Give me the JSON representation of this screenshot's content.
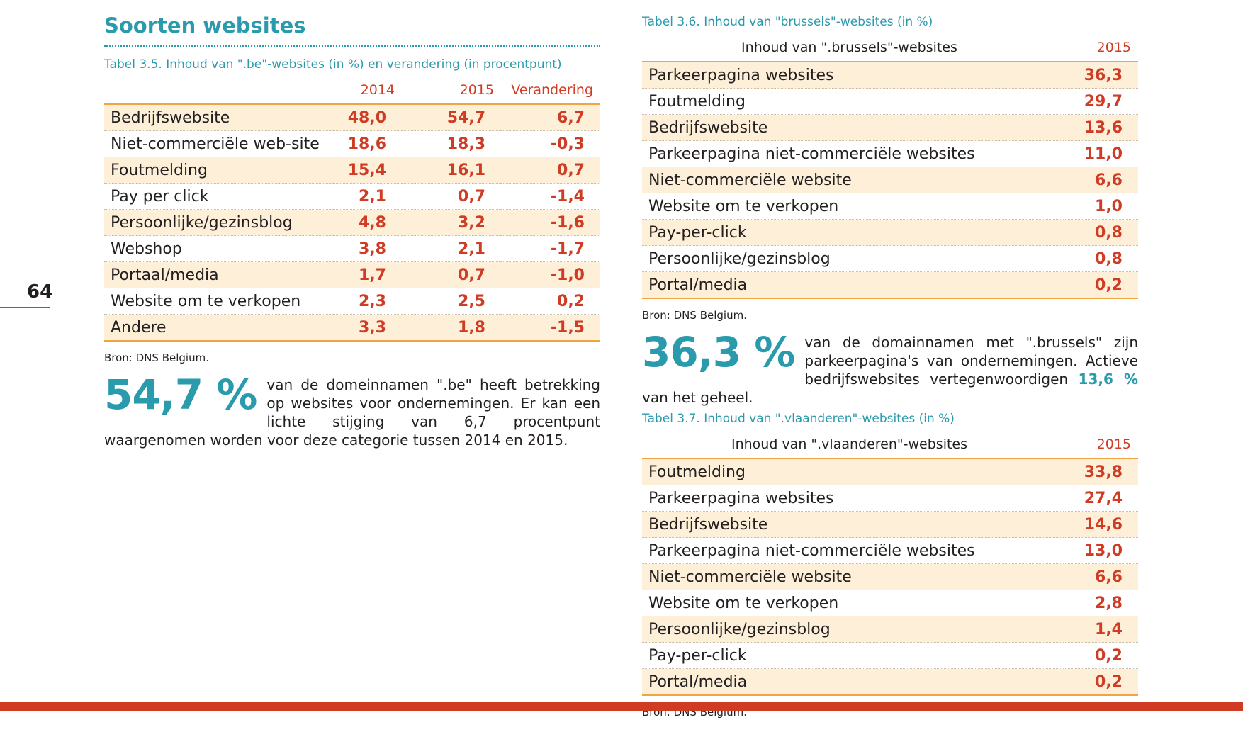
{
  "page_number": "64",
  "section_title": "Soorten websites",
  "table_35": {
    "caption": "Tabel 3.5. Inhoud van \".be\"-websites (in %) en verandering (in procentpunt)",
    "columns": [
      "",
      "2014",
      "2015",
      "Verandering"
    ],
    "rows": [
      {
        "label": "Bedrijfswebsite",
        "v2014": "48,0",
        "v2015": "54,7",
        "change": "6,7"
      },
      {
        "label": "Niet-commerciële web-site",
        "v2014": "18,6",
        "v2015": "18,3",
        "change": "-0,3"
      },
      {
        "label": "Foutmelding",
        "v2014": "15,4",
        "v2015": "16,1",
        "change": "0,7"
      },
      {
        "label": "Pay per click",
        "v2014": "2,1",
        "v2015": "0,7",
        "change": "-1,4"
      },
      {
        "label": "Persoonlijke/gezinsblog",
        "v2014": "4,8",
        "v2015": "3,2",
        "change": "-1,6"
      },
      {
        "label": "Webshop",
        "v2014": "3,8",
        "v2015": "2,1",
        "change": "-1,7"
      },
      {
        "label": "Portaal/media",
        "v2014": "1,7",
        "v2015": "0,7",
        "change": "-1,0"
      },
      {
        "label": "Website om te verkopen",
        "v2014": "2,3",
        "v2015": "2,5",
        "change": "0,2"
      },
      {
        "label": "Andere",
        "v2014": "3,3",
        "v2015": "1,8",
        "change": "-1,5"
      }
    ],
    "source": "Bron: DNS Belgium."
  },
  "callout_be": {
    "big": "54,7 %",
    "text": "van de domeinnamen \".be\" heeft betrekking op websites voor ondernemingen. Er kan een lichte stijging van 6,7 procentpunt waargenomen worden voor deze categorie tussen 2014 en 2015."
  },
  "table_36": {
    "caption": "Tabel 3.6. Inhoud van \"brussels\"-websites (in %)",
    "columns": [
      "Inhoud van \".brussels\"-websites",
      "2015"
    ],
    "rows": [
      {
        "label": "Parkeerpagina websites",
        "v2015": "36,3"
      },
      {
        "label": "Foutmelding",
        "v2015": "29,7"
      },
      {
        "label": "Bedrijfswebsite",
        "v2015": "13,6"
      },
      {
        "label": "Parkeerpagina niet-commerciële websites",
        "v2015": "11,0"
      },
      {
        "label": "Niet-commerciële website",
        "v2015": "6,6"
      },
      {
        "label": "Website om te verkopen",
        "v2015": "1,0"
      },
      {
        "label": "Pay-per-click",
        "v2015": "0,8"
      },
      {
        "label": "Persoonlijke/gezinsblog",
        "v2015": "0,8"
      },
      {
        "label": "Portal/media",
        "v2015": "0,2"
      }
    ],
    "source": "Bron: DNS Belgium."
  },
  "callout_brussels": {
    "big": "36,3 %",
    "text_before": "van de domainnamen met \".brussels\" zijn parkeerpagina's van ondernemingen. Actieve bedrijfswebsites vertegenwoordigen",
    "highlight": "13,6 %",
    "text_after": "van het geheel."
  },
  "table_37": {
    "caption": "Tabel 3.7. Inhoud van \".vlaanderen\"-websites (in %)",
    "columns": [
      "Inhoud van \".vlaanderen\"-websites",
      "2015"
    ],
    "rows": [
      {
        "label": "Foutmelding",
        "v2015": "33,8"
      },
      {
        "label": "Parkeerpagina websites",
        "v2015": "27,4"
      },
      {
        "label": "Bedrijfswebsite",
        "v2015": "14,6"
      },
      {
        "label": "Parkeerpagina niet-commerciële websites",
        "v2015": "13,0"
      },
      {
        "label": "Niet-commerciële website",
        "v2015": "6,6"
      },
      {
        "label": "Website om te verkopen",
        "v2015": "2,8"
      },
      {
        "label": "Persoonlijke/gezinsblog",
        "v2015": "1,4"
      },
      {
        "label": "Pay-per-click",
        "v2015": "0,2"
      },
      {
        "label": "Portal/media",
        "v2015": "0,2"
      }
    ],
    "source": "Bron: DNS Belgium."
  },
  "colors": {
    "accent_teal": "#2a9aad",
    "value_red": "#d03b24",
    "row_tint": "#fdefd8",
    "rule_orange": "#f0a540"
  }
}
